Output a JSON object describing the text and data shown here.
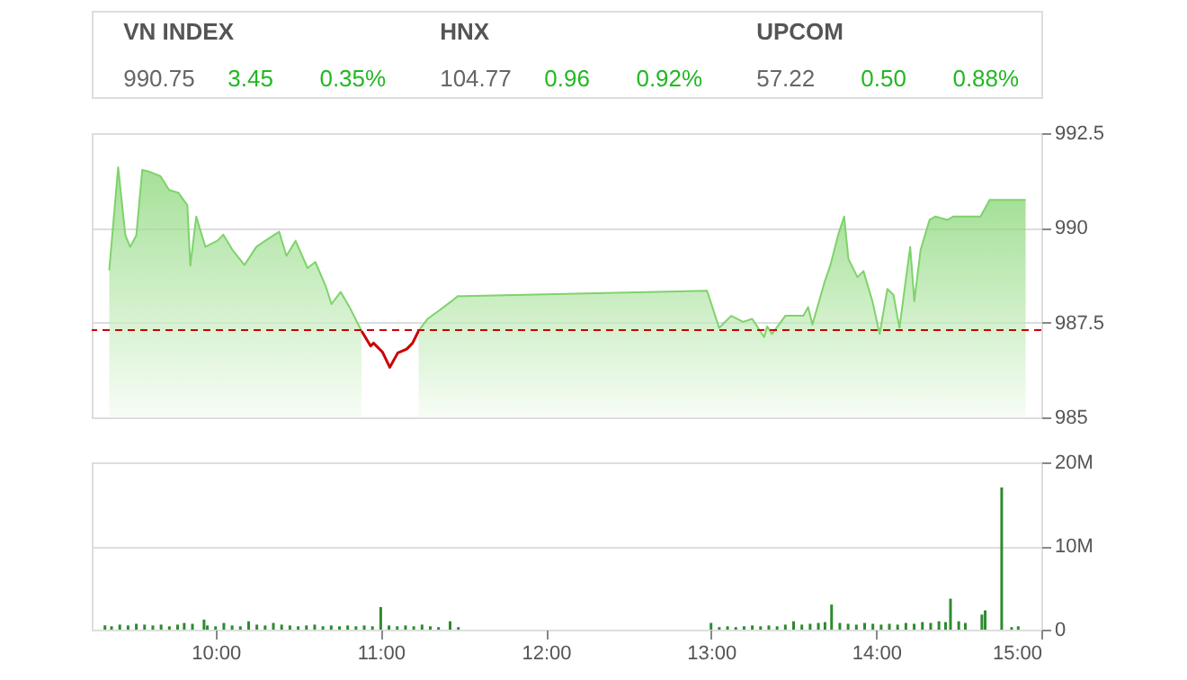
{
  "chart_data": [
    {
      "type": "other",
      "annotations": [
        "VN INDEX",
        "990.75",
        "3.45",
        "0.35%",
        "HNX",
        "104.77",
        "0.96",
        "0.92%",
        "UPCOM",
        "57.22",
        "0.50",
        "0.88%"
      ]
    },
    {
      "type": "area",
      "xlim": [
        9.25,
        15
      ],
      "ylim": [
        985,
        992.5
      ],
      "yticks": [
        985,
        987.5,
        990,
        992.5
      ],
      "grid": "y",
      "tick_labels": "y",
      "x": [
        9.356,
        9.41,
        9.454,
        9.483,
        9.52,
        9.556,
        9.592,
        9.665,
        9.719,
        9.774,
        9.829,
        9.847,
        9.883,
        9.938,
        10.011,
        10.047,
        10.102,
        10.175,
        10.247,
        10.301,
        10.385,
        10.429,
        10.484,
        10.557,
        10.604,
        10.666,
        10.702,
        10.757,
        10.811,
        10.884,
        10.939,
        10.956,
        11.011,
        11.055,
        11.103,
        11.157,
        11.193,
        11.229,
        11.284,
        11.357,
        11.43,
        11.466,
        11.5,
        12.976,
        13.049,
        13.122,
        13.194,
        13.249,
        13.322,
        13.34,
        13.369,
        13.45,
        13.559,
        13.588,
        13.614,
        13.686,
        13.723,
        13.77,
        13.806,
        13.832,
        13.887,
        13.923,
        13.977,
        14.021,
        14.068,
        14.105,
        14.141,
        14.177,
        14.206,
        14.231,
        14.269,
        14.323,
        14.359,
        14.432,
        14.468,
        14.632,
        14.687,
        14.905
      ],
      "series": [
        {
          "type": "area",
          "color": "#7ed36b",
          "values": [
            988.88,
            991.6,
            989.8,
            989.5,
            989.8,
            991.53,
            991.49,
            991.37,
            991.0,
            990.93,
            990.6,
            989.0,
            990.3,
            989.5,
            989.66,
            989.82,
            989.42,
            989.02,
            989.5,
            989.66,
            989.9,
            989.26,
            989.66,
            988.94,
            989.1,
            988.47,
            987.99,
            988.31,
            987.91,
            987.28,
            null,
            null,
            null,
            null,
            null,
            null,
            null,
            987.28,
            987.6,
            987.83,
            988.07,
            988.2,
            988.2,
            988.34,
            987.36,
            987.68,
            987.52,
            987.6,
            987.12,
            987.4,
            987.2,
            987.68,
            987.68,
            987.91,
            987.45,
            988.55,
            989.02,
            989.82,
            990.3,
            989.18,
            988.7,
            988.86,
            988.07,
            987.2,
            988.39,
            988.23,
            987.36,
            988.55,
            989.5,
            988.07,
            989.42,
            990.21,
            990.3,
            990.21,
            990.3,
            990.3,
            990.74,
            990.74
          ]
        },
        {
          "type": "line",
          "color": "#cc0000",
          "x": [
            10.884,
            10.939,
            10.956,
            11.011,
            11.055,
            11.103,
            11.157,
            11.193,
            11.229
          ],
          "values": [
            987.28,
            986.88,
            986.96,
            986.72,
            986.32,
            986.7,
            986.8,
            986.96,
            987.28
          ]
        }
      ],
      "ref_lines": [
        {
          "axis": "y",
          "value": 987.3,
          "color": "#cc0000",
          "line_style": "dashed"
        }
      ]
    },
    {
      "type": "bar",
      "color": "#2e8b2e",
      "xlim": [
        9.25,
        15
      ],
      "xticks": [
        {
          "value": 10,
          "label": "10:00"
        },
        {
          "value": 11,
          "label": "11:00"
        },
        {
          "value": 12,
          "label": "12:00"
        },
        {
          "value": 13,
          "label": "13:00"
        },
        {
          "value": 14,
          "label": "14:00"
        },
        {
          "value": 15,
          "label": "15:00"
        }
      ],
      "ylim": [
        0,
        20
      ],
      "yticks": [
        0,
        {
          "value": 10,
          "label": "10M"
        },
        {
          "value": 20,
          "label": "20M"
        }
      ],
      "grid": "y",
      "x": [
        9.33,
        9.37,
        9.42,
        9.47,
        9.52,
        9.57,
        9.62,
        9.67,
        9.72,
        9.77,
        9.81,
        9.86,
        9.93,
        9.95,
        10.0,
        10.05,
        10.1,
        10.15,
        10.2,
        10.25,
        10.3,
        10.35,
        10.4,
        10.45,
        10.5,
        10.55,
        10.6,
        10.65,
        10.7,
        10.75,
        10.8,
        10.85,
        10.9,
        10.95,
        11.0,
        11.05,
        11.1,
        11.15,
        11.2,
        11.25,
        11.3,
        11.35,
        11.42,
        11.47,
        13.0,
        13.05,
        13.1,
        13.15,
        13.2,
        13.25,
        13.3,
        13.35,
        13.4,
        13.45,
        13.5,
        13.55,
        13.6,
        13.65,
        13.69,
        13.73,
        13.78,
        13.83,
        13.88,
        13.93,
        13.98,
        14.03,
        14.08,
        14.13,
        14.18,
        14.23,
        14.28,
        14.33,
        14.38,
        14.42,
        14.45,
        14.5,
        14.54,
        14.64,
        14.66,
        14.76,
        14.82,
        14.86
      ],
      "values": [
        0.5,
        0.4,
        0.6,
        0.5,
        0.7,
        0.6,
        0.5,
        0.6,
        0.4,
        0.6,
        0.8,
        0.7,
        1.2,
        0.5,
        0.4,
        0.8,
        0.5,
        0.4,
        1.0,
        0.6,
        0.5,
        0.8,
        0.6,
        0.5,
        0.4,
        0.5,
        0.6,
        0.4,
        0.5,
        0.4,
        0.5,
        0.4,
        0.5,
        0.4,
        2.7,
        0.5,
        0.4,
        0.5,
        0.4,
        0.6,
        0.4,
        0.3,
        1.0,
        0.3,
        0.8,
        0.3,
        0.4,
        0.3,
        0.4,
        0.5,
        0.4,
        0.5,
        0.4,
        0.6,
        1.0,
        0.6,
        0.7,
        0.8,
        0.9,
        3.0,
        0.8,
        0.7,
        0.6,
        0.8,
        0.7,
        0.6,
        0.7,
        0.6,
        0.8,
        0.7,
        0.9,
        0.8,
        1.0,
        0.9,
        3.7,
        1.0,
        0.8,
        1.8,
        2.3,
        17.0,
        0.3,
        0.4
      ]
    }
  ]
}
